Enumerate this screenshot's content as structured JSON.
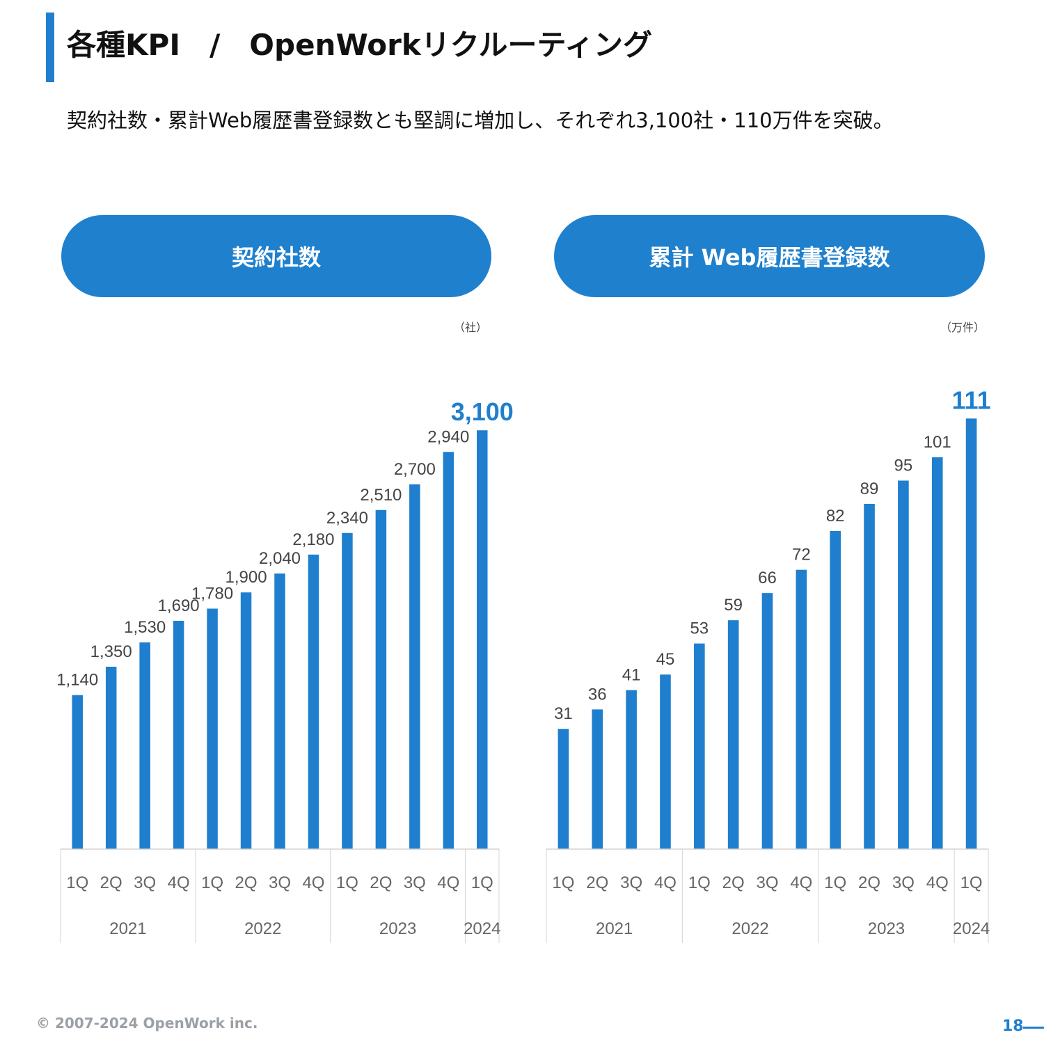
{
  "header": {
    "title": "各種KPI　/　OpenWorkリクルーティング",
    "subtitle": "契約社数・累計Web履歴書登録数とも堅調に増加し、それぞれ3,100社・110万件を突破。"
  },
  "colors": {
    "accent": "#1f7fce",
    "bar": "#1f7fce",
    "highlight_label": "#1f7fce",
    "label": "#444444"
  },
  "chart_data": [
    {
      "type": "bar",
      "title": "契約社数",
      "unit": "（社）",
      "categories": [
        "1Q",
        "2Q",
        "3Q",
        "4Q",
        "1Q",
        "2Q",
        "3Q",
        "4Q",
        "1Q",
        "2Q",
        "3Q",
        "4Q",
        "1Q"
      ],
      "groups": [
        {
          "label": "2021",
          "span": 4
        },
        {
          "label": "2022",
          "span": 4
        },
        {
          "label": "2023",
          "span": 4
        },
        {
          "label": "2024",
          "span": 1
        }
      ],
      "values": [
        1140,
        1350,
        1530,
        1690,
        1780,
        1900,
        2040,
        2180,
        2340,
        2510,
        2700,
        2940,
        3100
      ],
      "value_labels": [
        "1,140",
        "1,350",
        "1,530",
        "1,690",
        "1,780",
        "1,900",
        "2,040",
        "2,180",
        "2,340",
        "2,510",
        "2,700",
        "2,940",
        "3,100"
      ],
      "ylim": [
        0,
        3400
      ]
    },
    {
      "type": "bar",
      "title": "累計 Web履歴書登録数",
      "unit": "（万件）",
      "categories": [
        "1Q",
        "2Q",
        "3Q",
        "4Q",
        "1Q",
        "2Q",
        "3Q",
        "4Q",
        "1Q",
        "2Q",
        "3Q",
        "4Q",
        "1Q"
      ],
      "groups": [
        {
          "label": "2021",
          "span": 4
        },
        {
          "label": "2022",
          "span": 4
        },
        {
          "label": "2023",
          "span": 4
        },
        {
          "label": "2024",
          "span": 1
        }
      ],
      "values": [
        31,
        36,
        41,
        45,
        53,
        59,
        66,
        72,
        82,
        89,
        95,
        101,
        111
      ],
      "value_labels": [
        "31",
        "36",
        "41",
        "45",
        "53",
        "59",
        "66",
        "72",
        "82",
        "89",
        "95",
        "101",
        "111"
      ],
      "ylim": [
        0,
        122
      ]
    }
  ],
  "footer": {
    "copyright": "© 2007-2024 OpenWork inc.",
    "page": "18"
  }
}
